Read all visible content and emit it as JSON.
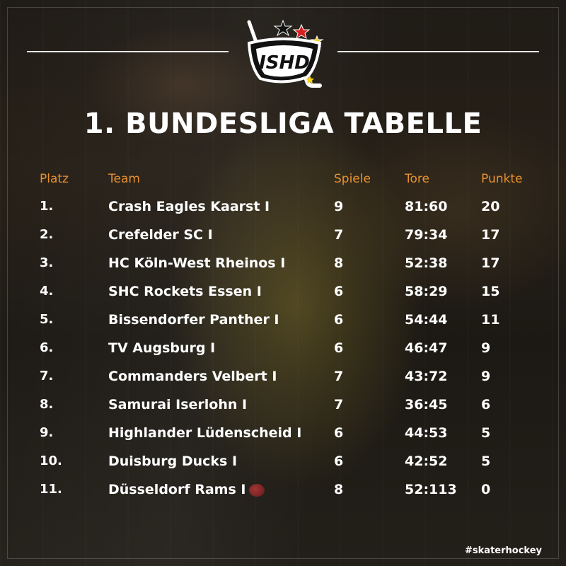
{
  "logo": {
    "text": "ISHD"
  },
  "title": "1. BUNDESLIGA TABELLE",
  "columns": {
    "platz": "Platz",
    "team": "Team",
    "spiele": "Spiele",
    "tore": "Tore",
    "punkte": "Punkte"
  },
  "rows": [
    {
      "platz": "1.",
      "team": "Crash Eagles Kaarst I",
      "spiele": "9",
      "tore": "81:60",
      "punkte": "20"
    },
    {
      "platz": "2.",
      "team": "Crefelder SC I",
      "spiele": "7",
      "tore": "79:34",
      "punkte": "17"
    },
    {
      "platz": "3.",
      "team": "HC Köln-West Rheinos I",
      "spiele": "8",
      "tore": "52:38",
      "punkte": "17"
    },
    {
      "platz": "4.",
      "team": "SHC Rockets Essen I",
      "spiele": "6",
      "tore": "58:29",
      "punkte": "15"
    },
    {
      "platz": "5.",
      "team": "Bissendorfer Panther I",
      "spiele": "6",
      "tore": "54:44",
      "punkte": "11"
    },
    {
      "platz": "6.",
      "team": "TV Augsburg I",
      "spiele": "6",
      "tore": "46:47",
      "punkte": "9"
    },
    {
      "platz": "7.",
      "team": "Commanders Velbert I",
      "spiele": "7",
      "tore": "43:72",
      "punkte": "9"
    },
    {
      "platz": "8.",
      "team": "Samurai Iserlohn I",
      "spiele": "7",
      "tore": "36:45",
      "punkte": "6"
    },
    {
      "platz": "9.",
      "team": "Highlander Lüdenscheid I",
      "spiele": "6",
      "tore": "44:53",
      "punkte": "5"
    },
    {
      "platz": "10.",
      "team": "Duisburg Ducks I",
      "spiele": "6",
      "tore": "42:52",
      "punkte": "5"
    },
    {
      "platz": "11.",
      "team": "Düsseldorf Rams I",
      "spiele": "8",
      "tore": "52:113",
      "punkte": "0"
    }
  ],
  "hashtag": "#skaterhockey",
  "colors": {
    "accent": "#e8912f",
    "text": "#ffffff",
    "background": "#1f1b16"
  }
}
